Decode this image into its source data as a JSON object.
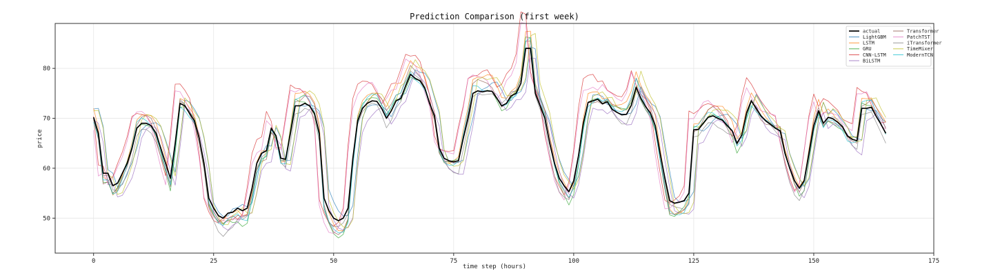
{
  "chart_data": {
    "type": "line",
    "title": "Prediction Comparison (first week)",
    "xlabel": "time step (hours)",
    "ylabel": "price",
    "xlim": [
      -8,
      175
    ],
    "ylim": [
      43,
      89
    ],
    "xticks": [
      0,
      25,
      50,
      75,
      100,
      125,
      150,
      175
    ],
    "yticks": [
      50,
      60,
      70,
      80
    ],
    "grid": true,
    "legend_position": "top-right",
    "series": [
      {
        "name": "actual",
        "color": "#000000",
        "width": 1.7,
        "opacity": 1,
        "dy": 0,
        "lag": 0,
        "amp": 1,
        "y": [
          70.2,
          67,
          59,
          59,
          56.5,
          57,
          59,
          61,
          64,
          68,
          69,
          69,
          68.5,
          67,
          64,
          61,
          58,
          65,
          73,
          72.5,
          71,
          69.5,
          66,
          61,
          54,
          52,
          50.5,
          50,
          51,
          51.2,
          52,
          51.5,
          52,
          56,
          61,
          63,
          63.5,
          68,
          66.5,
          62,
          61.8,
          67,
          72.5,
          72.5,
          73,
          72.5,
          71,
          67,
          54,
          51.5,
          50,
          49.5,
          50,
          52,
          62,
          69.5,
          72,
          73,
          73.5,
          73.4,
          72,
          70,
          71.5,
          73.5,
          74,
          76.5,
          78.8,
          78,
          77.5,
          76,
          73,
          70.5,
          64,
          62,
          61.5,
          61.3,
          61.5,
          66,
          70,
          75,
          75.5,
          75.3,
          75.5,
          75.4,
          74,
          72.5,
          73,
          74.5,
          75,
          77,
          84,
          84,
          75,
          72.5,
          70,
          65,
          61,
          58,
          56.5,
          55.3,
          57.5,
          62.5,
          69,
          73.2,
          73.5,
          73.8,
          72.9,
          73.3,
          71.8,
          71.2,
          70.7,
          70.8,
          72.6,
          76.2,
          74,
          72.3,
          71,
          68.5,
          63,
          58,
          53.5,
          53,
          53.2,
          53.5,
          55,
          67.7,
          67.8,
          69,
          70.2,
          70.5,
          70,
          69.6,
          68.5,
          67.5,
          65,
          66.6,
          71,
          73.5,
          72,
          70.5,
          69.5,
          68.8,
          68,
          67.5,
          63,
          60,
          57.5,
          56,
          57.5,
          63,
          68.5,
          71.5,
          69,
          70.2,
          69.9,
          69.2,
          68.3,
          66.5,
          65.8,
          65.5,
          72,
          72,
          72.2,
          70.4,
          68.8,
          67
        ]
      },
      {
        "name": "LightGBM",
        "color": "#1f77b4",
        "width": 0.8,
        "opacity": 0.75,
        "dy": 0.5,
        "lag": 1,
        "amp": 1.0
      },
      {
        "name": "LSTM",
        "color": "#ff7f0e",
        "width": 0.8,
        "opacity": 0.75,
        "dy": 1.0,
        "lag": 0,
        "amp": 1.15
      },
      {
        "name": "GRU",
        "color": "#2ca02c",
        "width": 0.8,
        "opacity": 0.75,
        "dy": -0.5,
        "lag": 0,
        "amp": 1.1
      },
      {
        "name": "CNN-LSTM",
        "color": "#d62728",
        "width": 0.8,
        "opacity": 0.75,
        "dy": 2.5,
        "lag": -1,
        "amp": 1.2
      },
      {
        "name": "BiLSTM",
        "color": "#9467bd",
        "width": 0.8,
        "opacity": 0.75,
        "dy": -1.5,
        "lag": 1,
        "amp": 1.05
      },
      {
        "name": "Transformer",
        "color": "#8c564b",
        "width": 0.8,
        "opacity": 0.75,
        "dy": 0.0,
        "lag": 0,
        "amp": 1.12
      },
      {
        "name": "PatchTST",
        "color": "#e377c2",
        "width": 0.8,
        "opacity": 0.75,
        "dy": 1.5,
        "lag": -1,
        "amp": 1.18
      },
      {
        "name": "iTransformer",
        "color": "#7f7f7f",
        "width": 0.8,
        "opacity": 0.75,
        "dy": -1.0,
        "lag": 0,
        "amp": 1.08
      },
      {
        "name": "TimeMixer",
        "color": "#bcbd22",
        "width": 0.8,
        "opacity": 0.75,
        "dy": 0.8,
        "lag": 1,
        "amp": 1.14
      },
      {
        "name": "ModernTCN",
        "color": "#17becf",
        "width": 0.8,
        "opacity": 0.75,
        "dy": -0.3,
        "lag": 0,
        "amp": 1.1
      }
    ]
  }
}
